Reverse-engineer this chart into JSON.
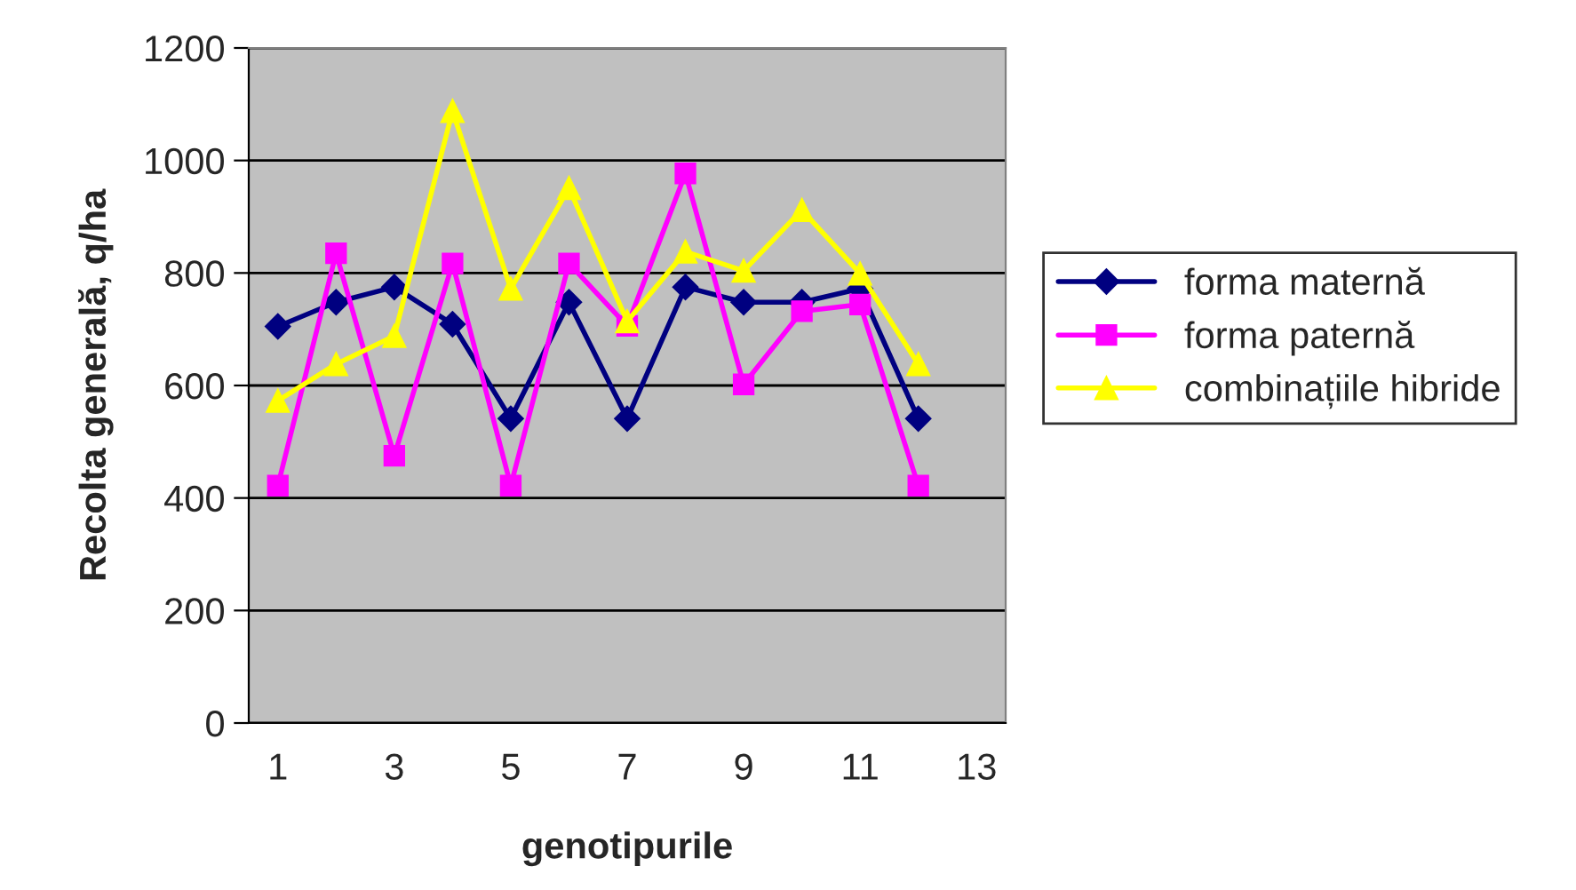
{
  "chart_data": {
    "type": "line",
    "xlabel": "genotipurile",
    "ylabel": "Recolta generală, q/ha",
    "x": [
      1,
      2,
      3,
      4,
      5,
      6,
      7,
      8,
      9,
      10,
      11,
      12
    ],
    "series": [
      {
        "name": "forma maternă",
        "color": "#000080",
        "marker": "diamond",
        "values": [
          705,
          748,
          775,
          709,
          541,
          748,
          541,
          775,
          748,
          748,
          772,
          541
        ]
      },
      {
        "name": "forma paternă",
        "color": "#ff00ff",
        "marker": "square",
        "values": [
          422,
          835,
          475,
          817,
          422,
          817,
          706,
          977,
          602,
          732,
          744,
          422
        ]
      },
      {
        "name": "combinațiile hibride",
        "color": "#ffff00",
        "marker": "triangle",
        "values": [
          573,
          638,
          688,
          1088,
          772,
          951,
          714,
          838,
          804,
          912,
          799,
          638
        ]
      }
    ],
    "xlim": [
      0.5,
      13.5
    ],
    "xticks": [
      1,
      3,
      5,
      7,
      9,
      11,
      13
    ],
    "ylim": [
      0,
      1200
    ],
    "yticks": [
      0,
      200,
      400,
      600,
      800,
      1000,
      1200
    ],
    "grid": "y",
    "legend": "right",
    "line_style": "solid"
  }
}
